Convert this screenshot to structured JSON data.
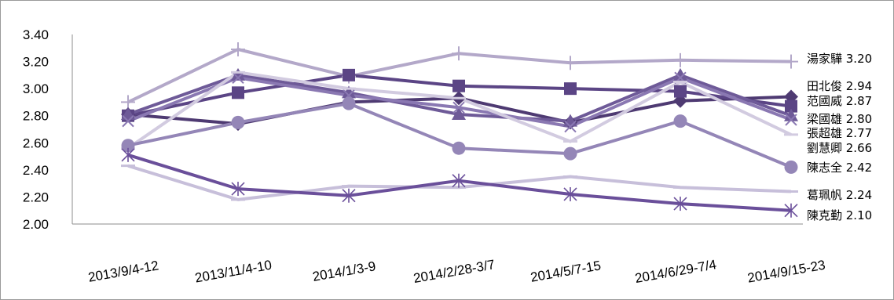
{
  "chart_data": {
    "type": "line",
    "title": "",
    "xlabel": "",
    "ylabel": "",
    "categories": [
      "2013/9/4-12",
      "2013/11/4-10",
      "2014/1/3-9",
      "2014/2/28-3/7",
      "2014/5/7-15",
      "2014/6/29-7/4",
      "2014/9/15-23"
    ],
    "ylim": [
      2.0,
      3.4
    ],
    "yticks": [
      "2.00",
      "2.20",
      "2.40",
      "2.60",
      "2.80",
      "3.00",
      "3.20",
      "3.40"
    ],
    "grid": false,
    "series": [
      {
        "name": "湯家驊",
        "end_label": "湯家驊 3.20",
        "values": [
          2.9,
          3.29,
          3.09,
          3.26,
          3.19,
          3.21,
          3.2
        ],
        "color": "#b3a8c9",
        "marker": "plus"
      },
      {
        "name": "田北俊",
        "end_label": "田北俊 2.94",
        "values": [
          2.81,
          2.74,
          2.9,
          2.93,
          2.75,
          2.91,
          2.94
        ],
        "color": "#4e3a72",
        "marker": "diamond"
      },
      {
        "name": "范國威",
        "end_label": "范國威 2.87",
        "values": [
          2.8,
          2.97,
          3.1,
          3.02,
          3.0,
          2.98,
          2.87
        ],
        "color": "#5b4585",
        "marker": "square"
      },
      {
        "name": "梁國雄",
        "end_label": "梁國雄 2.80",
        "values": [
          2.81,
          3.1,
          2.97,
          2.81,
          2.76,
          3.1,
          2.8
        ],
        "color": "#6e5a98",
        "marker": "triangle"
      },
      {
        "name": "張超雄",
        "end_label": "張超雄 2.77",
        "values": [
          2.76,
          3.08,
          2.95,
          2.86,
          2.72,
          3.08,
          2.77
        ],
        "color": "#8a78b2",
        "marker": "x"
      },
      {
        "name": "劉慧卿",
        "end_label": "劉慧卿 2.66",
        "values": [
          2.56,
          3.12,
          3.0,
          2.93,
          2.61,
          3.05,
          2.66
        ],
        "color": "#d2cbe0",
        "marker": "dash"
      },
      {
        "name": "陳志全",
        "end_label": "陳志全 2.42",
        "values": [
          2.58,
          2.75,
          2.89,
          2.56,
          2.52,
          2.76,
          2.42
        ],
        "color": "#9486b7",
        "marker": "circle"
      },
      {
        "name": "葛珮帆",
        "end_label": "葛珮帆 2.24",
        "values": [
          2.43,
          2.18,
          2.28,
          2.27,
          2.35,
          2.27,
          2.24
        ],
        "color": "#c7bfda",
        "marker": "dash"
      },
      {
        "name": "陳克勤",
        "end_label": "陳克勤 2.10",
        "values": [
          2.51,
          2.26,
          2.21,
          2.32,
          2.22,
          2.15,
          2.1
        ],
        "color": "#6a4f9a",
        "marker": "star"
      }
    ]
  }
}
